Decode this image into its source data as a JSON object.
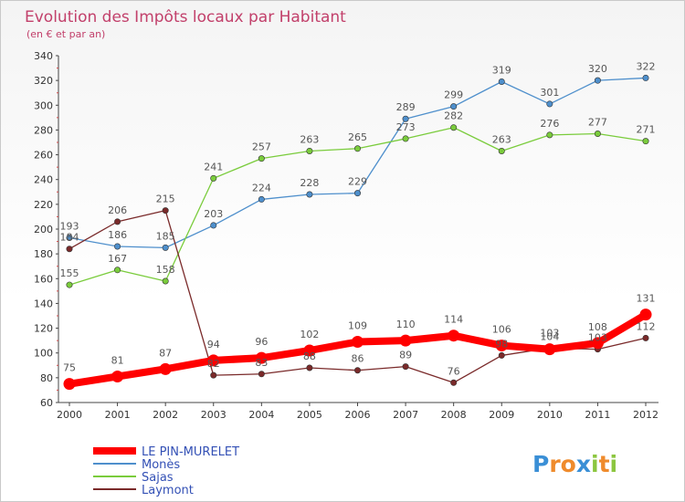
{
  "chart_data": {
    "type": "line",
    "title": "Evolution des Impôts locaux par Habitant",
    "subtitle": "(en € et par an)",
    "x": [
      "2000",
      "2001",
      "2002",
      "2003",
      "2004",
      "2005",
      "2006",
      "2007",
      "2008",
      "2009",
      "2010",
      "2011",
      "2012"
    ],
    "ylim": [
      60,
      340
    ],
    "yticks": [
      60,
      80,
      100,
      120,
      140,
      160,
      180,
      200,
      220,
      240,
      260,
      280,
      300,
      320,
      340
    ],
    "grid": false,
    "legend_position": "bottom-left",
    "series": [
      {
        "name": "LE PIN-MURELET",
        "color": "#ff0000",
        "emphasis": true,
        "values": [
          75,
          81,
          87,
          94,
          96,
          102,
          109,
          110,
          114,
          106,
          103,
          108,
          131
        ],
        "labels": [
          "75",
          "81",
          "87",
          "94",
          "96",
          "102",
          "109",
          "110",
          "114",
          "106",
          "103",
          "108",
          "131"
        ]
      },
      {
        "name": "Monès",
        "color": "#4e8fcc",
        "values": [
          193,
          186,
          185,
          203,
          224,
          228,
          229,
          289,
          299,
          319,
          301,
          320,
          322
        ],
        "labels": [
          "193",
          "186",
          "185",
          "203",
          "224",
          "228",
          "229",
          "289",
          "299",
          "319",
          "301",
          "320",
          "322"
        ]
      },
      {
        "name": "Sajas",
        "color": "#7acc3c",
        "values": [
          155,
          167,
          158,
          241,
          257,
          263,
          265,
          273,
          282,
          263,
          276,
          277,
          271
        ],
        "labels": [
          "155",
          "167",
          "158",
          "241",
          "257",
          "263",
          "265",
          "273",
          "282",
          "263",
          "276",
          "277",
          "271"
        ]
      },
      {
        "name": "Laymont",
        "color": "#7a2a2a",
        "values": [
          184,
          206,
          215,
          82,
          83,
          88,
          86,
          89,
          76,
          98,
          104,
          103,
          112
        ],
        "labels": [
          "184",
          "206",
          "215",
          "82",
          "83",
          "88",
          "86",
          "89",
          "76",
          "98",
          "104",
          "103",
          "112"
        ]
      }
    ]
  },
  "brand": {
    "letters": [
      "P",
      "r",
      "o",
      "x",
      "i",
      "t",
      "i"
    ],
    "colors": [
      "#3a8fd6",
      "#ef8b2c",
      "#ef8b2c",
      "#3a8fd6",
      "#8cc63f",
      "#ef8b2c",
      "#8cc63f"
    ]
  }
}
